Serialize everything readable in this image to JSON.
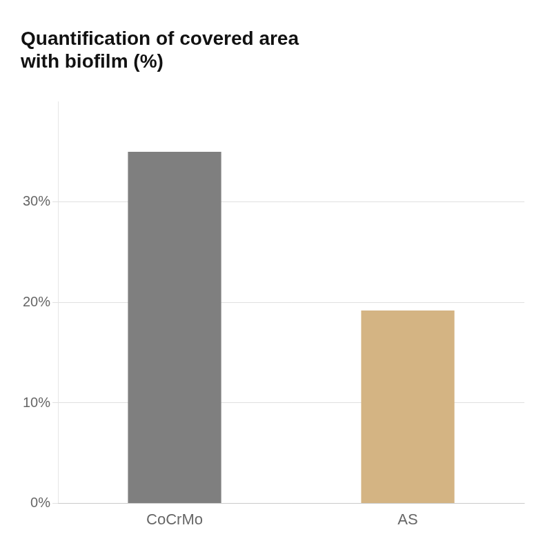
{
  "chart_data": {
    "type": "bar",
    "title": [
      "Quantification of covered area",
      "with biofilm (%)"
    ],
    "categories": [
      "CoCrMo",
      "AS"
    ],
    "values": [
      35.0,
      19.2
    ],
    "colors": [
      "#7f7f7f",
      "#D4B483"
    ],
    "ylim": [
      0,
      40
    ],
    "yticks": [
      {
        "value": 0,
        "label": "0%"
      },
      {
        "value": 10,
        "label": "10%"
      },
      {
        "value": 20,
        "label": "20%"
      },
      {
        "value": 30,
        "label": "30%"
      }
    ],
    "grid": true
  }
}
